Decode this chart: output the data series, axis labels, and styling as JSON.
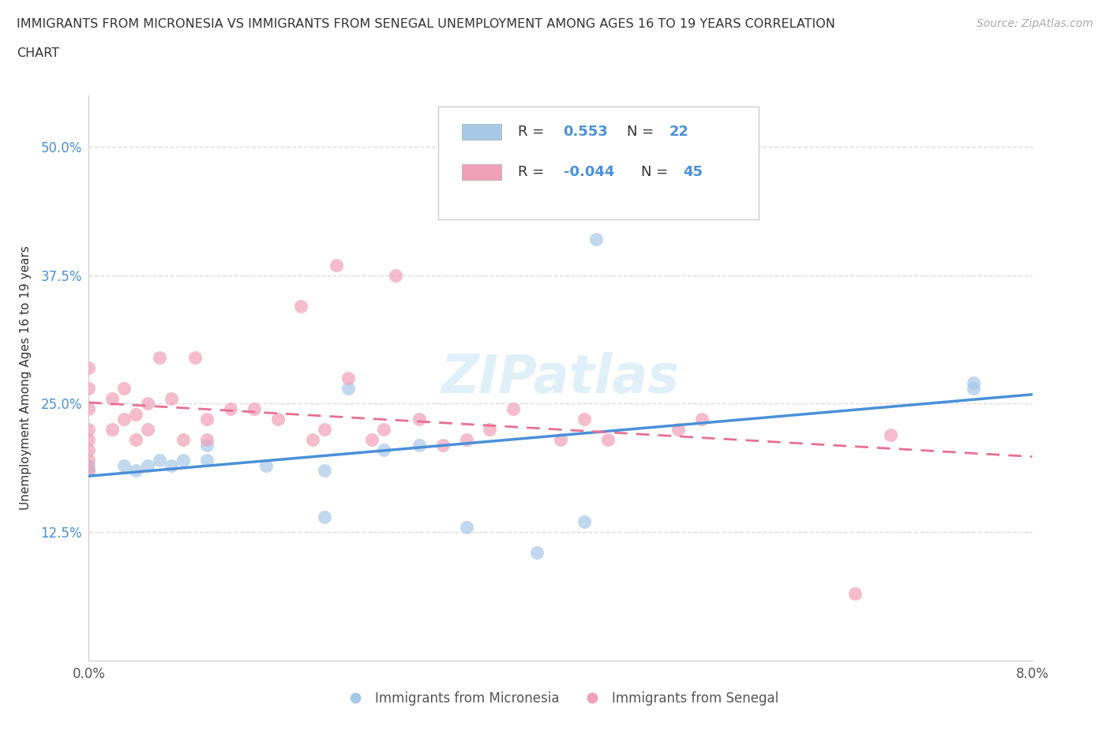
{
  "title_line1": "IMMIGRANTS FROM MICRONESIA VS IMMIGRANTS FROM SENEGAL UNEMPLOYMENT AMONG AGES 16 TO 19 YEARS CORRELATION",
  "title_line2": "CHART",
  "source_text": "Source: ZipAtlas.com",
  "ylabel": "Unemployment Among Ages 16 to 19 years",
  "xlim": [
    0.0,
    0.08
  ],
  "ylim": [
    0.0,
    0.55
  ],
  "xticks": [
    0.0,
    0.02,
    0.04,
    0.06,
    0.08
  ],
  "xticklabels": [
    "0.0%",
    "",
    "",
    "",
    "8.0%"
  ],
  "yticks": [
    0.125,
    0.25,
    0.375,
    0.5
  ],
  "yticklabels": [
    "12.5%",
    "25.0%",
    "37.5%",
    "50.0%"
  ],
  "color_micronesia": "#a8c8e8",
  "color_senegal": "#f0a0b8",
  "color_line_micronesia": "#4a90d9",
  "color_line_senegal": "#e87090",
  "watermark": "ZIPatlas",
  "micronesia_x": [
    0.0,
    0.0,
    0.003,
    0.004,
    0.005,
    0.006,
    0.007,
    0.008,
    0.01,
    0.01,
    0.015,
    0.02,
    0.02,
    0.022,
    0.025,
    0.028,
    0.032,
    0.038,
    0.042,
    0.043,
    0.075,
    0.075
  ],
  "micronesia_y": [
    0.185,
    0.19,
    0.19,
    0.185,
    0.19,
    0.195,
    0.19,
    0.195,
    0.195,
    0.21,
    0.19,
    0.14,
    0.185,
    0.265,
    0.205,
    0.21,
    0.13,
    0.105,
    0.135,
    0.41,
    0.27,
    0.265
  ],
  "senegal_x": [
    0.0,
    0.0,
    0.0,
    0.0,
    0.0,
    0.0,
    0.0,
    0.0,
    0.002,
    0.002,
    0.003,
    0.003,
    0.004,
    0.004,
    0.005,
    0.005,
    0.006,
    0.007,
    0.008,
    0.009,
    0.01,
    0.01,
    0.012,
    0.014,
    0.016,
    0.018,
    0.019,
    0.02,
    0.021,
    0.022,
    0.024,
    0.025,
    0.026,
    0.028,
    0.03,
    0.032,
    0.034,
    0.036,
    0.04,
    0.042,
    0.044,
    0.05,
    0.052,
    0.065,
    0.068
  ],
  "senegal_y": [
    0.185,
    0.195,
    0.205,
    0.215,
    0.225,
    0.245,
    0.265,
    0.285,
    0.225,
    0.255,
    0.235,
    0.265,
    0.215,
    0.24,
    0.225,
    0.25,
    0.295,
    0.255,
    0.215,
    0.295,
    0.215,
    0.235,
    0.245,
    0.245,
    0.235,
    0.345,
    0.215,
    0.225,
    0.385,
    0.275,
    0.215,
    0.225,
    0.375,
    0.235,
    0.21,
    0.215,
    0.225,
    0.245,
    0.215,
    0.235,
    0.215,
    0.225,
    0.235,
    0.065,
    0.22
  ]
}
